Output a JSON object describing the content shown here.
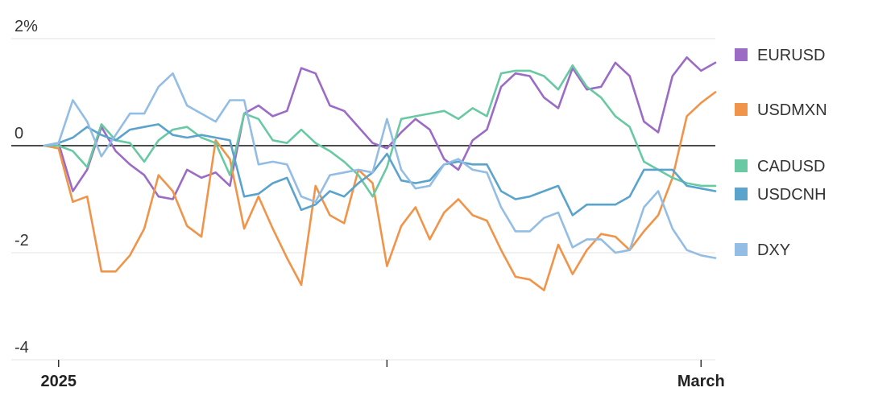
{
  "chart_data": {
    "type": "line",
    "title": "",
    "xlabel": "",
    "ylabel": "",
    "ylim": [
      -4,
      2
    ],
    "y_ticks": [
      {
        "value": 2,
        "label": "2%"
      },
      {
        "value": 0,
        "label": "0"
      },
      {
        "value": -2,
        "label": "-2"
      },
      {
        "value": -4,
        "label": "-4"
      }
    ],
    "x_ticks": [
      {
        "index": 1,
        "label": "2025",
        "show_label": true
      },
      {
        "index": 24,
        "label": "",
        "show_label": false
      },
      {
        "index": 46,
        "label": "March",
        "show_label": true
      }
    ],
    "zero_line": true,
    "grid": "horizontal",
    "legend_placement": "right",
    "x": [
      0,
      1,
      2,
      3,
      4,
      5,
      6,
      7,
      8,
      9,
      10,
      11,
      12,
      13,
      14,
      15,
      16,
      17,
      18,
      19,
      20,
      21,
      22,
      23,
      24,
      25,
      26,
      27,
      28,
      29,
      30,
      31,
      32,
      33,
      34,
      35,
      36,
      37,
      38,
      39,
      40,
      41,
      42,
      43,
      44,
      45,
      46,
      47
    ],
    "series": [
      {
        "name": "EURUSD",
        "color": "#9b6bc6",
        "values": [
          0.0,
          0.05,
          -0.85,
          -0.45,
          0.35,
          -0.1,
          -0.35,
          -0.55,
          -0.95,
          -1.0,
          -0.45,
          -0.6,
          -0.5,
          -0.75,
          0.6,
          0.75,
          0.55,
          0.65,
          1.45,
          1.35,
          0.75,
          0.65,
          0.35,
          0.05,
          -0.05,
          0.25,
          0.5,
          0.3,
          -0.25,
          -0.45,
          0.1,
          0.3,
          1.1,
          1.35,
          1.3,
          0.9,
          0.7,
          1.45,
          1.05,
          1.1,
          1.55,
          1.3,
          0.45,
          0.25,
          1.3,
          1.65,
          1.4,
          1.55
        ]
      },
      {
        "name": "USDMXN",
        "color": "#f0944a",
        "values": [
          0.0,
          -0.05,
          -1.05,
          -0.95,
          -2.35,
          -2.35,
          -2.05,
          -1.55,
          -0.55,
          -0.85,
          -1.5,
          -1.7,
          0.1,
          -0.25,
          -1.55,
          -0.95,
          -1.55,
          -2.1,
          -2.6,
          -0.75,
          -1.3,
          -1.45,
          -0.45,
          -0.7,
          -2.25,
          -1.5,
          -1.15,
          -1.75,
          -1.25,
          -1.0,
          -1.3,
          -1.4,
          -1.95,
          -2.45,
          -2.5,
          -2.7,
          -1.85,
          -2.4,
          -1.95,
          -1.65,
          -1.7,
          -1.95,
          -1.6,
          -1.3,
          -0.6,
          0.55,
          0.8,
          1.0
        ]
      },
      {
        "name": "CADUSD",
        "color": "#69c9a3",
        "values": [
          0.0,
          0.0,
          -0.1,
          -0.4,
          0.4,
          0.1,
          0.05,
          -0.3,
          0.1,
          0.3,
          0.35,
          0.15,
          0.05,
          -0.55,
          0.6,
          0.5,
          0.1,
          0.05,
          0.3,
          0.05,
          -0.1,
          -0.3,
          -0.55,
          -0.95,
          -0.4,
          0.5,
          0.55,
          0.6,
          0.65,
          0.5,
          0.7,
          0.55,
          1.35,
          1.4,
          1.4,
          1.3,
          1.05,
          1.5,
          1.1,
          0.9,
          0.55,
          0.35,
          -0.3,
          -0.45,
          -0.6,
          -0.7,
          -0.75,
          -0.75
        ]
      },
      {
        "name": "USDCNH",
        "color": "#5aa3cc",
        "values": [
          0.0,
          0.05,
          0.15,
          0.35,
          0.2,
          0.1,
          0.3,
          0.35,
          0.4,
          0.2,
          0.15,
          0.2,
          0.15,
          0.1,
          -0.95,
          -0.9,
          -0.7,
          -0.6,
          -1.2,
          -1.1,
          -0.85,
          -0.95,
          -0.7,
          -0.5,
          -0.15,
          -0.65,
          -0.7,
          -0.65,
          -0.35,
          -0.3,
          -0.35,
          -0.35,
          -0.85,
          -1.0,
          -0.95,
          -0.85,
          -0.75,
          -1.3,
          -1.1,
          -1.1,
          -1.1,
          -0.95,
          -0.45,
          -0.45,
          -0.45,
          -0.75,
          -0.8,
          -0.85
        ]
      },
      {
        "name": "DXY",
        "color": "#93bde4",
        "values": [
          0.0,
          0.05,
          0.85,
          0.45,
          -0.2,
          0.2,
          0.6,
          0.6,
          1.1,
          1.35,
          0.75,
          0.6,
          0.45,
          0.85,
          0.85,
          -0.35,
          -0.3,
          -0.35,
          -0.95,
          -1.05,
          -0.55,
          -0.5,
          -0.45,
          -0.5,
          0.5,
          -0.45,
          -0.8,
          -0.75,
          -0.35,
          -0.25,
          -0.45,
          -0.5,
          -1.15,
          -1.6,
          -1.6,
          -1.35,
          -1.25,
          -1.9,
          -1.75,
          -1.75,
          -2.0,
          -1.95,
          -1.15,
          -0.85,
          -1.55,
          -1.95,
          -2.05,
          -2.1
        ]
      }
    ]
  }
}
